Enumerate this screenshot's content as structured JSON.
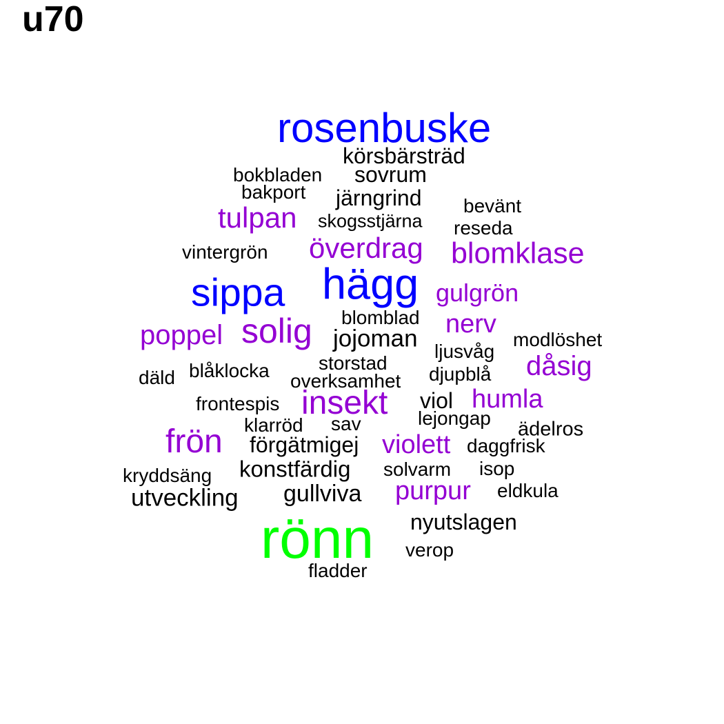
{
  "title": "u70",
  "colors": {
    "tier1": "#00ff00",
    "tier2": "#0000ff",
    "tier3": "#9400d3",
    "tier4": "#000000"
  },
  "words": [
    {
      "text": "rosenbuske",
      "tier": "tier2"
    },
    {
      "text": "körsbärsträd",
      "tier": "tier4"
    },
    {
      "text": "bokbladen",
      "tier": "tier4"
    },
    {
      "text": "sovrum",
      "tier": "tier4"
    },
    {
      "text": "bakport",
      "tier": "tier4"
    },
    {
      "text": "järngrind",
      "tier": "tier4"
    },
    {
      "text": "bevänt",
      "tier": "tier4"
    },
    {
      "text": "tulpan",
      "tier": "tier3"
    },
    {
      "text": "skogsstjärna",
      "tier": "tier4"
    },
    {
      "text": "reseda",
      "tier": "tier4"
    },
    {
      "text": "vintergrön",
      "tier": "tier4"
    },
    {
      "text": "överdrag",
      "tier": "tier3"
    },
    {
      "text": "blomklase",
      "tier": "tier3"
    },
    {
      "text": "sippa",
      "tier": "tier2"
    },
    {
      "text": "hägg",
      "tier": "tier2"
    },
    {
      "text": "gulgrön",
      "tier": "tier3"
    },
    {
      "text": "blomblad",
      "tier": "tier4"
    },
    {
      "text": "poppel",
      "tier": "tier3"
    },
    {
      "text": "solig",
      "tier": "tier3"
    },
    {
      "text": "nerv",
      "tier": "tier3"
    },
    {
      "text": "jojoman",
      "tier": "tier4"
    },
    {
      "text": "modlöshet",
      "tier": "tier4"
    },
    {
      "text": "ljusvåg",
      "tier": "tier4"
    },
    {
      "text": "storstad",
      "tier": "tier4"
    },
    {
      "text": "dåsig",
      "tier": "tier3"
    },
    {
      "text": "blåklocka",
      "tier": "tier4"
    },
    {
      "text": "djupblå",
      "tier": "tier4"
    },
    {
      "text": "däld",
      "tier": "tier4"
    },
    {
      "text": "overksamhet",
      "tier": "tier4"
    },
    {
      "text": "insekt",
      "tier": "tier3"
    },
    {
      "text": "viol",
      "tier": "tier4"
    },
    {
      "text": "humla",
      "tier": "tier3"
    },
    {
      "text": "frontespis",
      "tier": "tier4"
    },
    {
      "text": "lejongap",
      "tier": "tier4"
    },
    {
      "text": "klarröd",
      "tier": "tier4"
    },
    {
      "text": "sav",
      "tier": "tier4"
    },
    {
      "text": "ädelros",
      "tier": "tier4"
    },
    {
      "text": "frön",
      "tier": "tier3"
    },
    {
      "text": "förgätmigej",
      "tier": "tier4"
    },
    {
      "text": "violett",
      "tier": "tier3"
    },
    {
      "text": "daggfrisk",
      "tier": "tier4"
    },
    {
      "text": "konstfärdig",
      "tier": "tier4"
    },
    {
      "text": "solvarm",
      "tier": "tier4"
    },
    {
      "text": "isop",
      "tier": "tier4"
    },
    {
      "text": "kryddsäng",
      "tier": "tier4"
    },
    {
      "text": "purpur",
      "tier": "tier3"
    },
    {
      "text": "eldkula",
      "tier": "tier4"
    },
    {
      "text": "utveckling",
      "tier": "tier4"
    },
    {
      "text": "gullviva",
      "tier": "tier4"
    },
    {
      "text": "rönn",
      "tier": "tier1"
    },
    {
      "text": "nyutslagen",
      "tier": "tier4"
    },
    {
      "text": "verop",
      "tier": "tier4"
    },
    {
      "text": "fladder",
      "tier": "tier4"
    }
  ]
}
